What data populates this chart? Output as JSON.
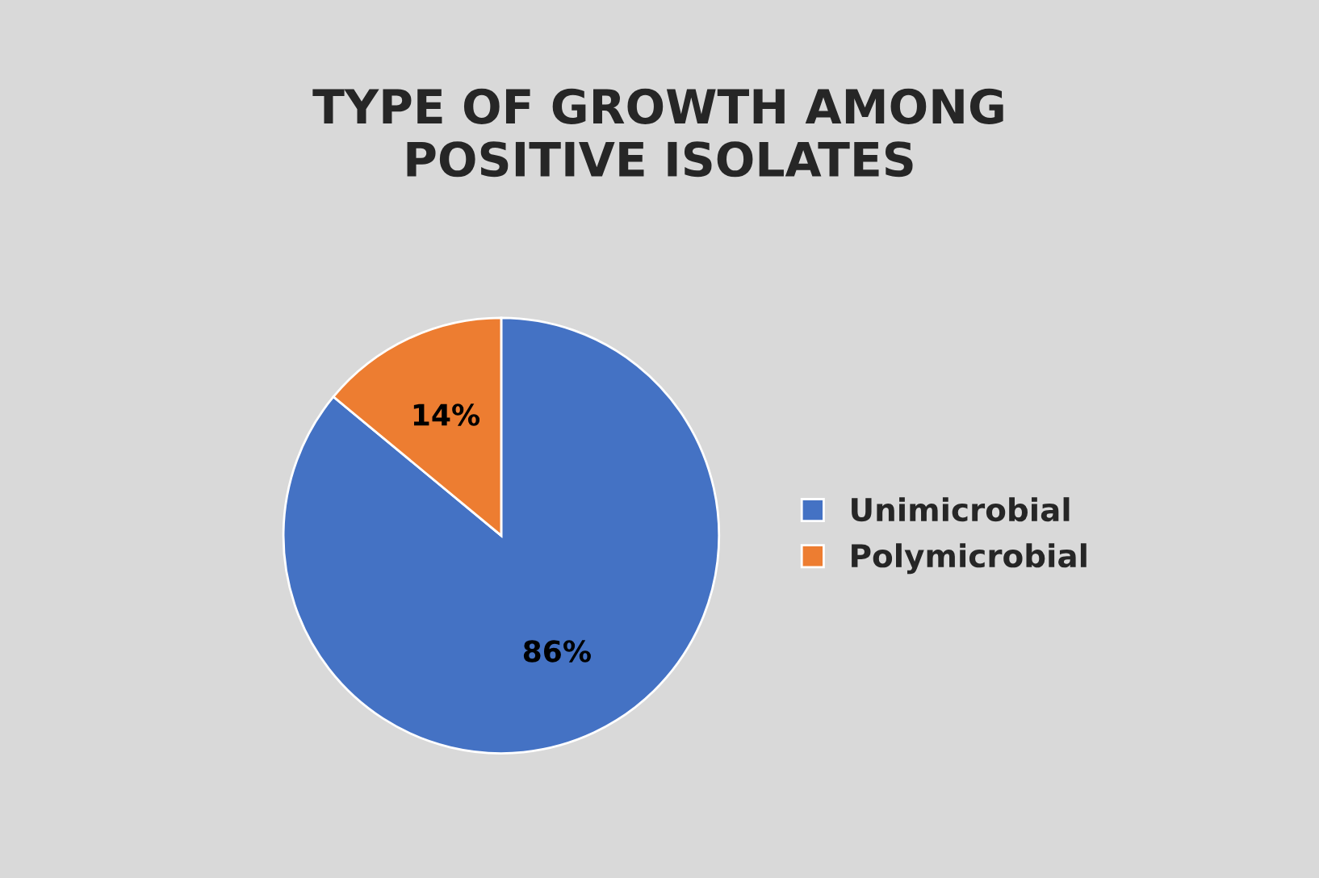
{
  "chart_data": {
    "type": "pie",
    "title": "TYPE OF GROWTH AMONG\nPOSITIVE ISOLATES",
    "categories": [
      "Unimicrobial",
      "Polymicrobial"
    ],
    "values": [
      86,
      14
    ],
    "colors": [
      "#4472c4",
      "#ed7d31"
    ],
    "value_labels": [
      "86%",
      "14%"
    ],
    "legend": "right"
  }
}
